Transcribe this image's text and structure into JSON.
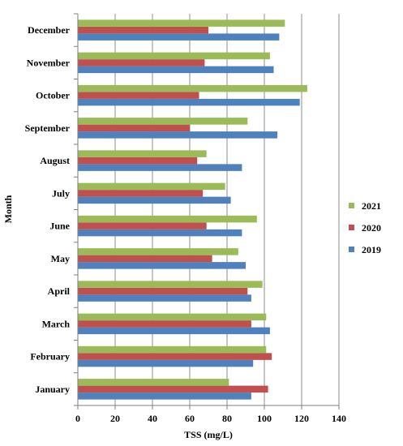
{
  "chart_data": {
    "type": "bar",
    "orientation": "horizontal",
    "categories": [
      "January",
      "February",
      "March",
      "April",
      "May",
      "June",
      "July",
      "August",
      "September",
      "October",
      "November",
      "December"
    ],
    "series": [
      {
        "name": "2019",
        "color": "#4F81BD",
        "values": [
          93,
          94,
          103,
          93,
          90,
          88,
          82,
          88,
          107,
          119,
          105,
          108
        ]
      },
      {
        "name": "2020",
        "color": "#C0504D",
        "values": [
          102,
          104,
          93,
          91,
          72,
          69,
          67,
          64,
          60,
          65,
          68,
          70
        ]
      },
      {
        "name": "2021",
        "color": "#9BBB59",
        "values": [
          81,
          101,
          101,
          99,
          86,
          96,
          79,
          69,
          91,
          123,
          103,
          111
        ]
      }
    ],
    "xlabel": "TSS (mg/L)",
    "ylabel": "Month",
    "xlim": [
      0,
      140
    ],
    "xticks": [
      0,
      20,
      40,
      60,
      80,
      100,
      120,
      140
    ],
    "vertical_gridlines": true,
    "legend_position": "right",
    "legend_order": [
      "2021",
      "2020",
      "2019"
    ]
  }
}
